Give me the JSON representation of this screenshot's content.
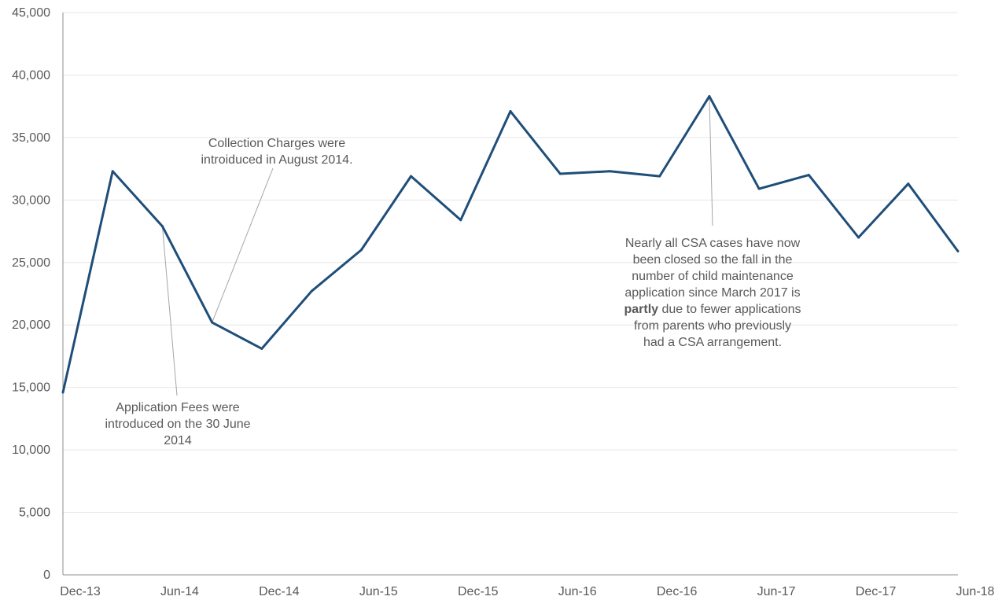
{
  "chart_data": {
    "type": "line",
    "title": "",
    "xlabel": "",
    "ylabel": "",
    "ylim": [
      0,
      45000
    ],
    "yticks": [
      "0",
      "5,000",
      "10,000",
      "15,000",
      "20,000",
      "25,000",
      "30,000",
      "35,000",
      "40,000",
      "45,000"
    ],
    "xticks": [
      "Dec-13",
      "Jun-14",
      "Dec-14",
      "Jun-15",
      "Dec-15",
      "Jun-16",
      "Dec-16",
      "Jun-17",
      "Dec-17",
      "Jun-18"
    ],
    "grid": "horizontal",
    "legend": "none",
    "series": [
      {
        "color": "#1f4e79",
        "x": [
          "2013-12",
          "2014-03",
          "2014-06",
          "2014-09",
          "2014-12",
          "2015-03",
          "2015-06",
          "2015-09",
          "2015-12",
          "2016-03",
          "2016-06",
          "2016-09",
          "2016-12",
          "2017-03",
          "2017-06",
          "2017-09",
          "2017-12",
          "2018-03",
          "2018-06"
        ],
        "values": [
          14600,
          32300,
          27900,
          20200,
          18100,
          22700,
          26000,
          31900,
          28400,
          37100,
          32100,
          32300,
          31900,
          38300,
          30900,
          32000,
          27000,
          31300,
          25900
        ]
      }
    ],
    "annotations": [
      {
        "lines": [
          "Collection Charges were",
          "introiduced in August 2014."
        ],
        "points_to": "2014-09"
      },
      {
        "lines": [
          "Application Fees were",
          "introduced on the 30 June",
          "2014"
        ],
        "points_to": "2014-06"
      },
      {
        "lines": [
          "Nearly all CSA cases have now",
          "been closed so the fall in the",
          "number of child maintenance",
          "application since March 2017 is",
          "partly due to fewer applications",
          "from parents who previously",
          "had a CSA arrangement."
        ],
        "bold_word": "partly",
        "points_to": "2017-03"
      }
    ]
  }
}
